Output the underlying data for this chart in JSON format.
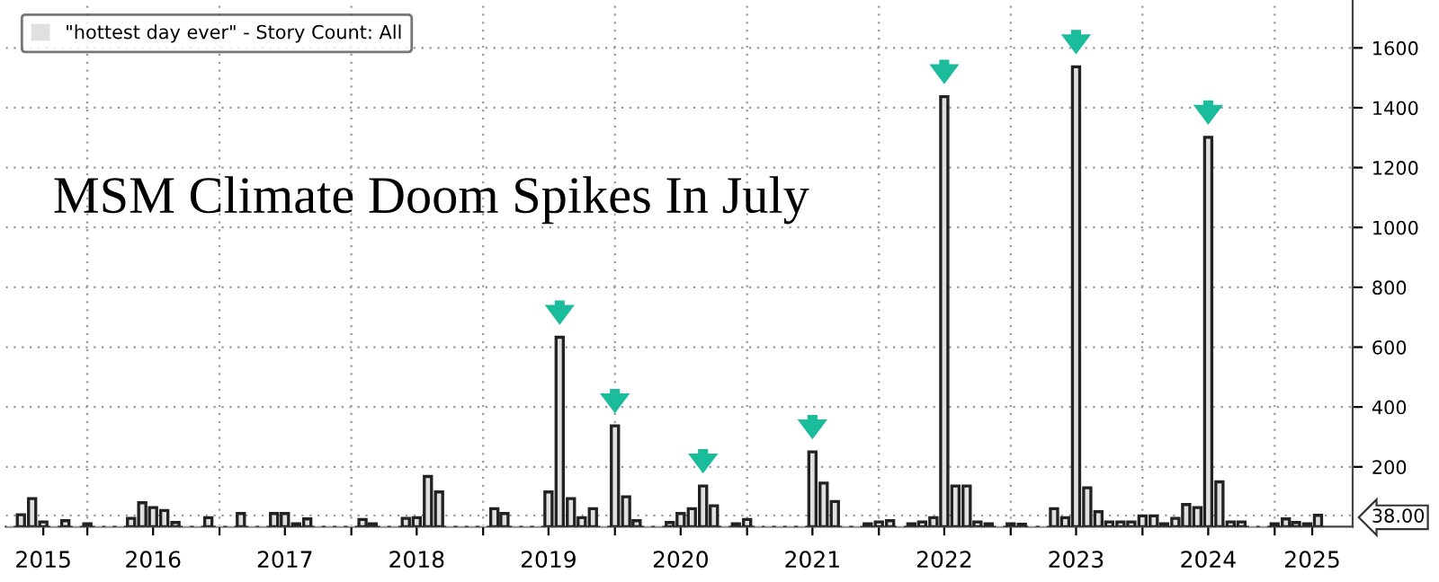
{
  "chart_data": {
    "type": "bar",
    "title": "MSM Climate Doom Spikes In July",
    "x": [
      "2015-06",
      "2015-07",
      "2015-08",
      "2015-09",
      "2015-10",
      "2015-11",
      "2015-12",
      "2016-01",
      "2016-02",
      "2016-03",
      "2016-04",
      "2016-05",
      "2016-06",
      "2016-07",
      "2016-08",
      "2016-09",
      "2016-10",
      "2016-11",
      "2016-12",
      "2017-01",
      "2017-02",
      "2017-03",
      "2017-04",
      "2017-05",
      "2017-06",
      "2017-07",
      "2017-08",
      "2017-09",
      "2017-10",
      "2017-11",
      "2017-12",
      "2018-01",
      "2018-02",
      "2018-03",
      "2018-04",
      "2018-05",
      "2018-06",
      "2018-07",
      "2018-08",
      "2018-09",
      "2018-10",
      "2018-11",
      "2018-12",
      "2019-01",
      "2019-02",
      "2019-03",
      "2019-04",
      "2019-05",
      "2019-06",
      "2019-07",
      "2019-08",
      "2019-09",
      "2019-10",
      "2019-11",
      "2019-12",
      "2020-01",
      "2020-02",
      "2020-03",
      "2020-04",
      "2020-05",
      "2020-06",
      "2020-07",
      "2020-08",
      "2020-09",
      "2020-10",
      "2020-11",
      "2020-12",
      "2021-01",
      "2021-02",
      "2021-03",
      "2021-04",
      "2021-05",
      "2021-06",
      "2021-07",
      "2021-08",
      "2021-09",
      "2021-10",
      "2021-11",
      "2021-12",
      "2022-01",
      "2022-02",
      "2022-03",
      "2022-04",
      "2022-05",
      "2022-06",
      "2022-07",
      "2022-08",
      "2022-09",
      "2022-10",
      "2022-11",
      "2022-12",
      "2023-01",
      "2023-02",
      "2023-03",
      "2023-04",
      "2023-05",
      "2023-06",
      "2023-07",
      "2023-08",
      "2023-09",
      "2023-10",
      "2023-11",
      "2023-12",
      "2024-01",
      "2024-02",
      "2024-03",
      "2024-04",
      "2024-05",
      "2024-06",
      "2024-07",
      "2024-08",
      "2024-09",
      "2024-10",
      "2024-11",
      "2024-12",
      "2025-01",
      "2025-02",
      "2025-03",
      "2025-04",
      "2025-05"
    ],
    "series": [
      {
        "name": "\"hottest day ever\" - Story Count: All",
        "color": "#e0e0e0",
        "values": [
          0,
          40,
          94,
          16,
          0,
          20,
          0,
          10,
          0,
          0,
          0,
          28,
          80,
          64,
          54,
          14,
          0,
          0,
          30,
          0,
          0,
          44,
          0,
          0,
          44,
          44,
          10,
          26,
          0,
          0,
          0,
          0,
          24,
          10,
          0,
          0,
          28,
          30,
          168,
          116,
          0,
          0,
          0,
          0,
          60,
          44,
          0,
          0,
          0,
          116,
          633,
          94,
          30,
          60,
          0,
          337,
          100,
          20,
          0,
          0,
          14,
          44,
          60,
          136,
          70,
          0,
          10,
          24,
          0,
          0,
          0,
          0,
          0,
          250,
          146,
          84,
          0,
          0,
          10,
          16,
          20,
          0,
          10,
          16,
          30,
          1437,
          136,
          136,
          16,
          10,
          0,
          10,
          8,
          0,
          0,
          60,
          30,
          1537,
          130,
          50,
          16,
          16,
          16,
          36,
          36,
          10,
          28,
          74,
          64,
          1301,
          150,
          16,
          16,
          0,
          0,
          10,
          26,
          14,
          10,
          38
        ]
      }
    ],
    "xlim": [
      "2015-05-20",
      "2025-08-05"
    ],
    "xticks": [
      {
        "value": "2015-09-01",
        "label": "2015"
      },
      {
        "value": "2016-01-01",
        "label": null
      },
      {
        "value": "2016-07-01",
        "label": "2016"
      },
      {
        "value": "2017-01-01",
        "label": null
      },
      {
        "value": "2017-07-01",
        "label": "2017"
      },
      {
        "value": "2018-01-01",
        "label": null
      },
      {
        "value": "2018-07-01",
        "label": "2018"
      },
      {
        "value": "2019-01-01",
        "label": null
      },
      {
        "value": "2019-07-01",
        "label": "2019"
      },
      {
        "value": "2020-01-01",
        "label": null
      },
      {
        "value": "2020-07-01",
        "label": "2020"
      },
      {
        "value": "2021-01-01",
        "label": null
      },
      {
        "value": "2021-07-01",
        "label": "2021"
      },
      {
        "value": "2022-01-01",
        "label": null
      },
      {
        "value": "2022-07-01",
        "label": "2022"
      },
      {
        "value": "2023-01-01",
        "label": null
      },
      {
        "value": "2023-07-01",
        "label": "2023"
      },
      {
        "value": "2024-01-01",
        "label": null
      },
      {
        "value": "2024-07-01",
        "label": "2024"
      },
      {
        "value": "2025-01-01",
        "label": null
      },
      {
        "value": "2025-04-15",
        "label": "2025"
      }
    ],
    "ylim": [
      0,
      1760
    ],
    "yticks": [
      {
        "value": 38,
        "label": "38.00"
      },
      200,
      400,
      600,
      800,
      1000,
      1200,
      1400,
      1600
    ],
    "grid": true,
    "legend": "top left"
  }
}
